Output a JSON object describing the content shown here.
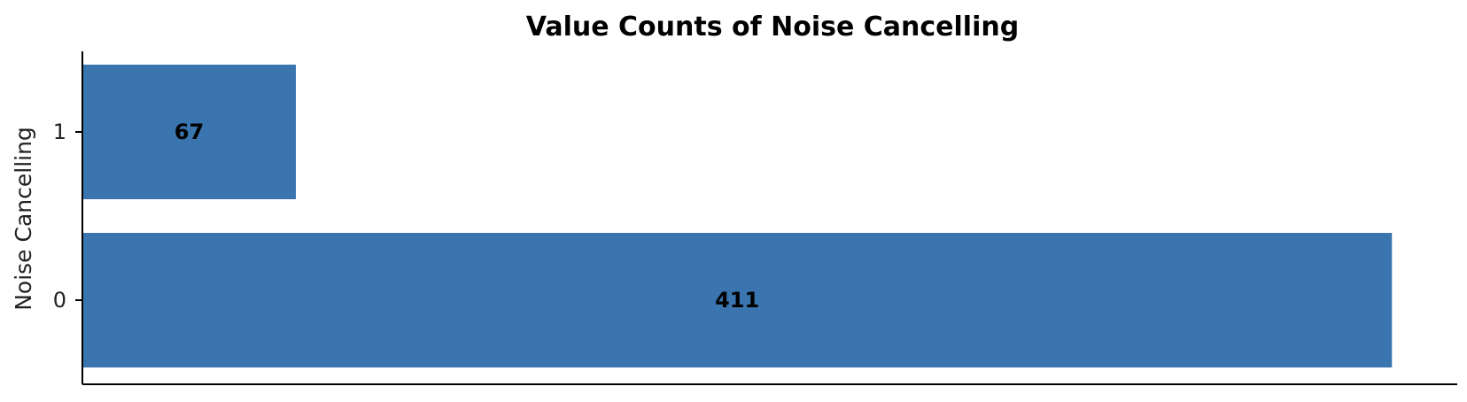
{
  "chart_data": {
    "type": "bar",
    "orientation": "horizontal",
    "title": "Value Counts of Noise Cancelling",
    "xlabel": "",
    "ylabel": "Noise Cancelling",
    "categories": [
      "0",
      "1"
    ],
    "values": [
      411,
      67
    ],
    "data_labels": [
      "411",
      "67"
    ],
    "xlim": [
      0,
      431.5
    ],
    "grid": false,
    "legend": "none",
    "colors": {
      "bar": "#3b75af",
      "axis": "#000000",
      "text": "#000000"
    }
  }
}
